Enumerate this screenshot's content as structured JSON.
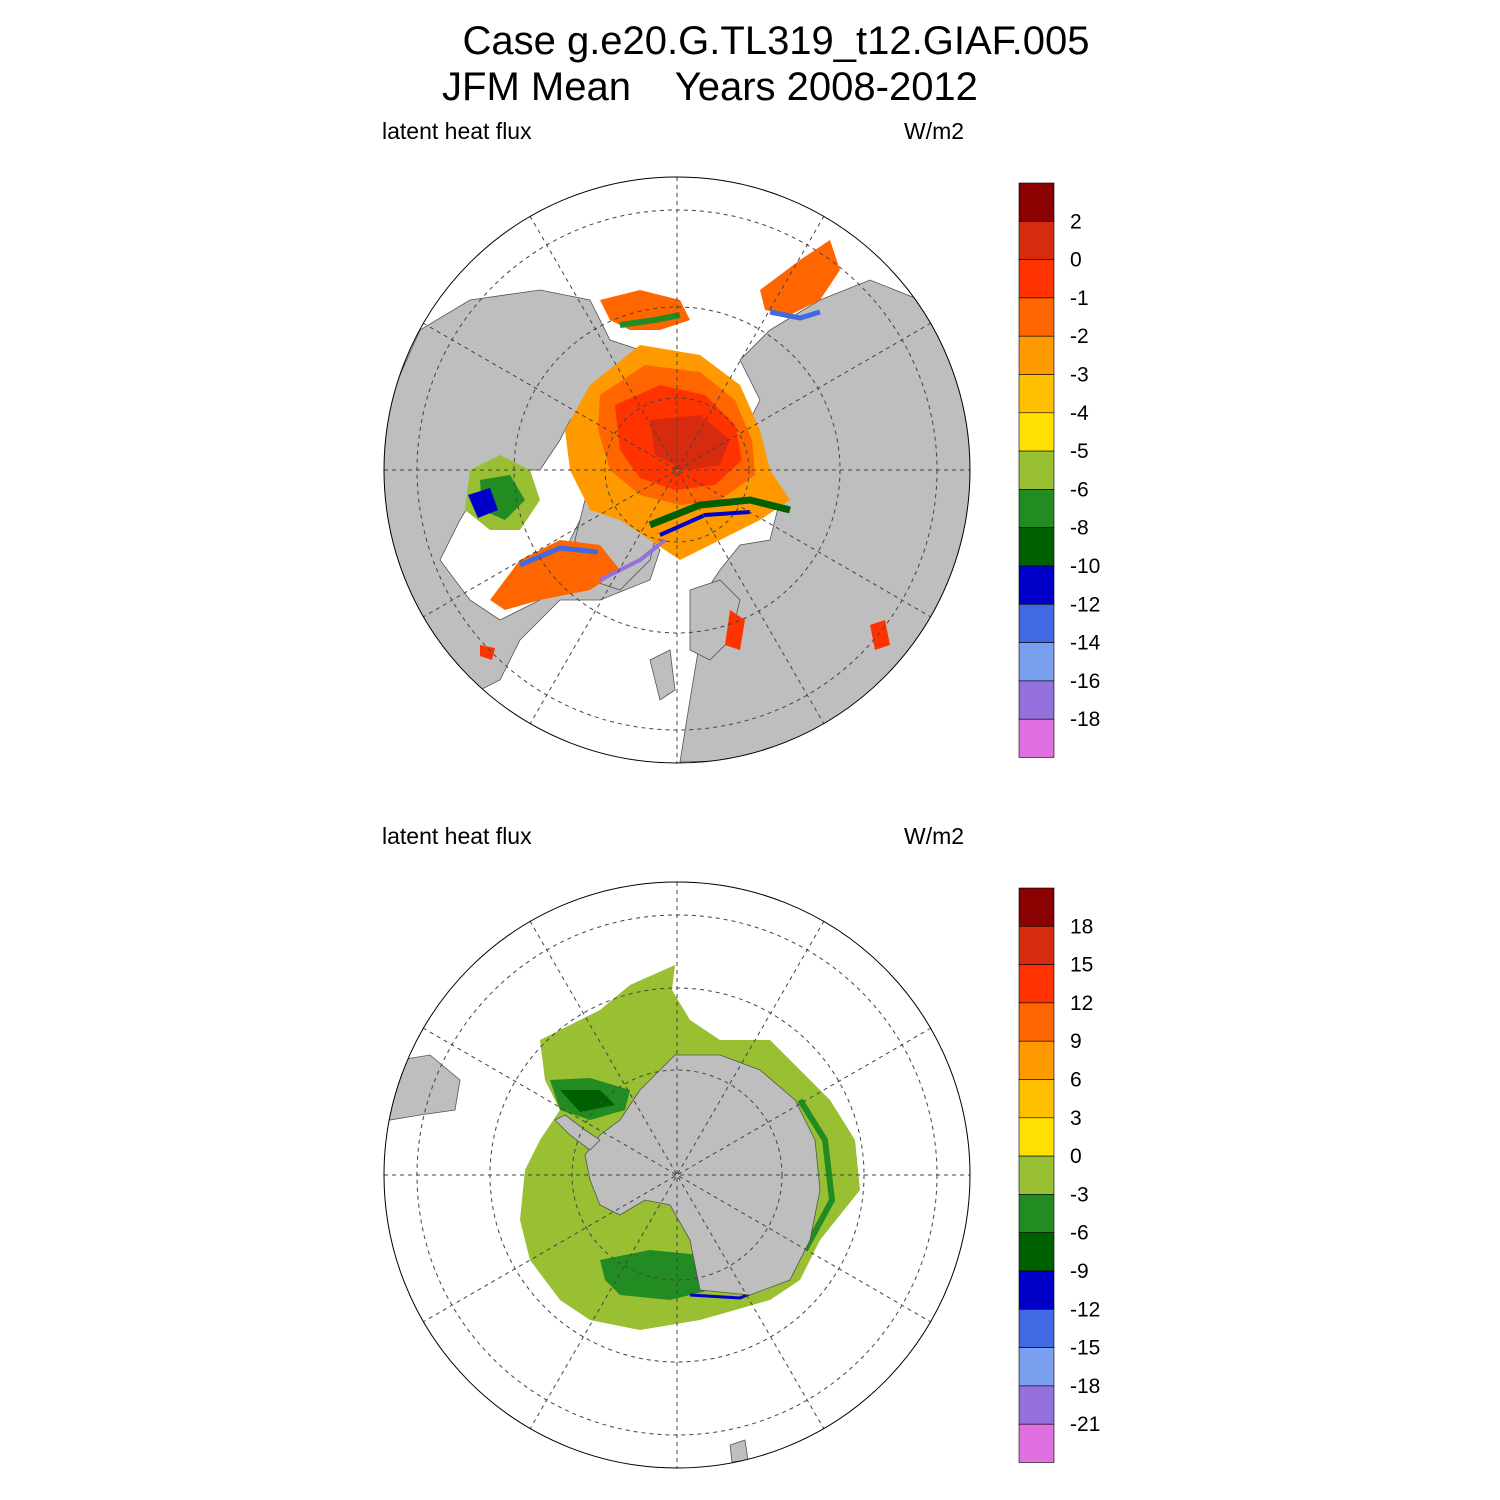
{
  "title": {
    "line1": "Case g.e20.G.TL319_t12.GIAF.005",
    "line2": "JFM Mean    Years 2008-2012"
  },
  "panels": [
    {
      "id": "north",
      "left_label": "latent heat flux",
      "right_label": "W/m2",
      "colorbar_labels": [
        "2",
        "0",
        "-1",
        "-2",
        "-3",
        "-4",
        "-5",
        "-6",
        "-8",
        "-10",
        "-12",
        "-14",
        "-16",
        "-18"
      ],
      "colors": [
        "#8b0000",
        "#d72b10",
        "#ff3300",
        "#ff6600",
        "#ff9900",
        "#ffbf00",
        "#ffe000",
        "#99bf33",
        "#228b22",
        "#006000",
        "#0000c8",
        "#4169e1",
        "#7b9fef",
        "#9370db",
        "#e070e0"
      ]
    },
    {
      "id": "south",
      "left_label": "latent heat flux",
      "right_label": "W/m2",
      "colorbar_labels": [
        "18",
        "15",
        "12",
        "9",
        "6",
        "3",
        "0",
        "-3",
        "-6",
        "-9",
        "-12",
        "-15",
        "-18",
        "-21"
      ],
      "colors": [
        "#8b0000",
        "#d72b10",
        "#ff3300",
        "#ff6600",
        "#ff9900",
        "#ffbf00",
        "#ffe000",
        "#99bf33",
        "#228b22",
        "#006000",
        "#0000c8",
        "#4169e1",
        "#7b9fef",
        "#9370db",
        "#e070e0"
      ]
    }
  ],
  "land_color": "#bebebe"
}
